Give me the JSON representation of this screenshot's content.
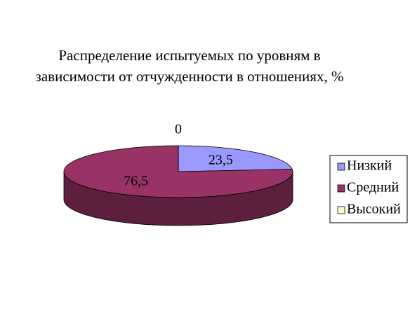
{
  "chart_data": {
    "type": "pie3d",
    "title": "Распределение испытуемых по уровням в зависимости от отчужденности в отношениях, %",
    "categories": [
      "Низкий",
      "Средний",
      "Высокий"
    ],
    "values": [
      23.5,
      76.5,
      0
    ],
    "value_labels": [
      "23,5",
      "76,5",
      "0"
    ],
    "colors": [
      "#9999ff",
      "#993366",
      "#ffffcc"
    ],
    "legend": "right"
  }
}
